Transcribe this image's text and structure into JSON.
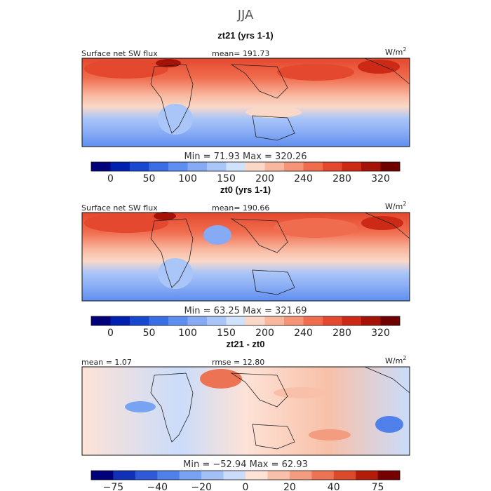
{
  "figure_title": "JJA",
  "chart_data": [
    {
      "type": "heatmap",
      "title": "zt21 (yrs 1-1)",
      "variable": "Surface net SW flux",
      "stat_label": "mean= 191.73",
      "units": "W/m",
      "units_sup": "2",
      "minmax": "Min =  71.93  Max =  320.26",
      "min": 71.93,
      "max": 320.26,
      "mean": 191.73,
      "colorbar": {
        "levels": [
          0,
          25,
          50,
          75,
          100,
          125,
          150,
          175,
          200,
          220,
          240,
          260,
          280,
          300,
          320,
          340
        ],
        "tick_labels": [
          "0",
          "50",
          "100",
          "150",
          "200",
          "240",
          "280",
          "320"
        ],
        "colors": [
          "#00007a",
          "#0020b0",
          "#1848d0",
          "#3a6ee4",
          "#5e8ef0",
          "#86aaf4",
          "#aac6f8",
          "#d0e2fa",
          "#fad8c8",
          "#f8b8a0",
          "#f69478",
          "#f06c4e",
          "#e4482e",
          "#cc2a16",
          "#a41208",
          "#6e0000"
        ]
      }
    },
    {
      "type": "heatmap",
      "title": "zt0 (yrs 1-1)",
      "variable": "Surface net SW flux",
      "stat_label": "mean= 190.66",
      "units": "W/m",
      "units_sup": "2",
      "minmax": "Min =  63.25  Max =  321.69",
      "min": 63.25,
      "max": 321.69,
      "mean": 190.66,
      "colorbar": {
        "levels": [
          0,
          25,
          50,
          75,
          100,
          125,
          150,
          175,
          200,
          220,
          240,
          260,
          280,
          300,
          320,
          340
        ],
        "tick_labels": [
          "0",
          "50",
          "100",
          "150",
          "200",
          "240",
          "280",
          "320"
        ],
        "colors": [
          "#00007a",
          "#0020b0",
          "#1848d0",
          "#3a6ee4",
          "#5e8ef0",
          "#86aaf4",
          "#aac6f8",
          "#d0e2fa",
          "#fad8c8",
          "#f8b8a0",
          "#f69478",
          "#f06c4e",
          "#e4482e",
          "#cc2a16",
          "#a41208",
          "#6e0000"
        ]
      }
    },
    {
      "type": "heatmap",
      "title": "zt21 - zt0",
      "stat_label": "mean =   1.07",
      "stat_label_2": "rmse =  12.80",
      "units": "W/m",
      "units_sup": "2",
      "minmax": "Min = −52.94  Max =  62.93",
      "min": -52.94,
      "max": 62.93,
      "mean": 1.07,
      "rmse": 12.8,
      "colorbar": {
        "levels": [
          -100,
          -75,
          -50,
          -40,
          -30,
          -20,
          -10,
          0,
          10,
          20,
          30,
          40,
          50,
          75,
          100
        ],
        "tick_labels": [
          "−75",
          "−40",
          "−20",
          "0",
          "20",
          "40",
          "75"
        ],
        "colors": [
          "#00007a",
          "#1030b8",
          "#2e5ad8",
          "#5080ea",
          "#78a2f2",
          "#a2c0f6",
          "#cadcfa",
          "#fde2d6",
          "#f8c0a8",
          "#f49c80",
          "#ec7454",
          "#dc4a2c",
          "#b41c0a",
          "#760000"
        ]
      }
    }
  ]
}
